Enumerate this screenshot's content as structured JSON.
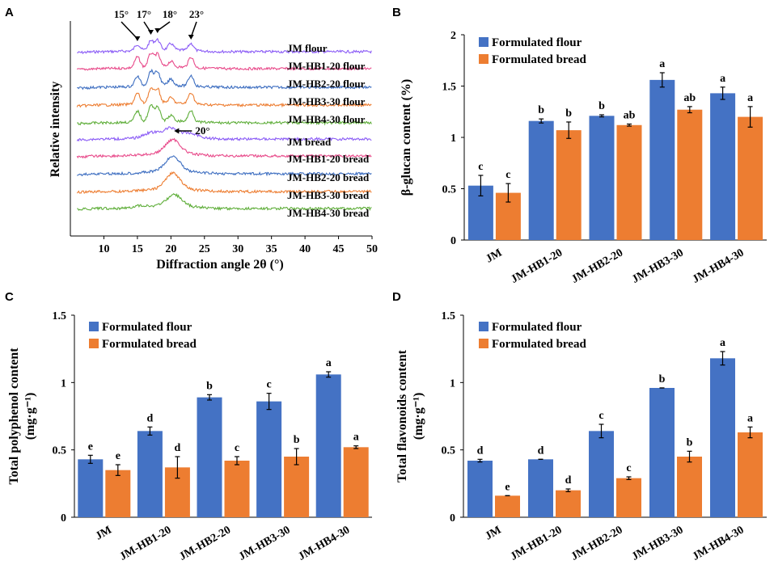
{
  "panels": {
    "A": "A",
    "B": "B",
    "C": "C",
    "D": "D"
  },
  "colors": {
    "flour": "#4472C4",
    "bread": "#ED7D31",
    "axis": "#000000"
  },
  "chart_data": [
    {
      "id": "A",
      "type": "line",
      "title": "",
      "xlabel": "Diffraction angle 2θ (°)",
      "ylabel": "Relative intensity",
      "xlim": [
        5,
        50
      ],
      "xticks": [
        10,
        15,
        20,
        25,
        30,
        35,
        40,
        45,
        50
      ],
      "peak_labels": [
        "15°",
        "17°",
        "18°",
        "23°"
      ],
      "peak_positions": [
        15,
        17,
        18,
        23
      ],
      "bread_peak_label": "20°",
      "bread_peak_position": 20,
      "series": [
        {
          "name": "JM flour",
          "color": "#8B5CF6",
          "kind": "flour",
          "peaks": [
            [
              15,
              0.35
            ],
            [
              17,
              0.5
            ],
            [
              18,
              0.55
            ],
            [
              20,
              0.35
            ],
            [
              23,
              0.4
            ]
          ]
        },
        {
          "name": "JM-HB1-20 flour",
          "color": "#E84A8A",
          "kind": "flour",
          "peaks": [
            [
              15,
              0.6
            ],
            [
              17,
              0.75
            ],
            [
              18,
              0.7
            ],
            [
              20,
              0.3
            ],
            [
              23,
              0.6
            ]
          ]
        },
        {
          "name": "JM-HB2-20 flour",
          "color": "#3C6DC0",
          "kind": "flour",
          "peaks": [
            [
              15,
              0.55
            ],
            [
              17,
              0.8
            ],
            [
              18,
              0.75
            ],
            [
              20,
              0.35
            ],
            [
              23,
              0.6
            ]
          ]
        },
        {
          "name": "JM-HB3-30 flour",
          "color": "#ED7D31",
          "kind": "flour",
          "peaks": [
            [
              15,
              0.6
            ],
            [
              17,
              0.8
            ],
            [
              18,
              0.8
            ],
            [
              20,
              0.3
            ],
            [
              23,
              0.65
            ]
          ]
        },
        {
          "name": "JM-HB4-30 flour",
          "color": "#5FAE3A",
          "kind": "flour",
          "peaks": [
            [
              15,
              0.6
            ],
            [
              17,
              0.85
            ],
            [
              18,
              0.8
            ],
            [
              20,
              0.3
            ],
            [
              23,
              0.65
            ]
          ]
        },
        {
          "name": "JM bread",
          "color": "#8B5CF6",
          "kind": "bread",
          "peaks": [
            [
              17,
              0.25
            ],
            [
              20,
              0.45
            ],
            [
              23,
              0.2
            ]
          ]
        },
        {
          "name": "JM-HB1-20 bread",
          "color": "#E84A8A",
          "kind": "bread",
          "peaks": [
            [
              20.3,
              0.75
            ]
          ]
        },
        {
          "name": "JM-HB2-20 bread",
          "color": "#3C6DC0",
          "kind": "bread",
          "peaks": [
            [
              20.3,
              0.8
            ]
          ]
        },
        {
          "name": "JM-HB3-30 bread",
          "color": "#ED7D31",
          "kind": "bread",
          "peaks": [
            [
              20.3,
              0.85
            ]
          ]
        },
        {
          "name": "JM-HB4-30 bread",
          "color": "#5FAE3A",
          "kind": "bread",
          "peaks": [
            [
              15.5,
              0.1
            ],
            [
              20.5,
              0.6
            ]
          ]
        }
      ]
    },
    {
      "id": "B",
      "type": "bar",
      "title": "",
      "xlabel": "",
      "ylabel": "β-glucan content (%)",
      "ylim": [
        0,
        2
      ],
      "yticks": [
        0,
        0.5,
        1,
        1.5,
        2
      ],
      "ytick_labels": [
        "0",
        "0.5",
        "1",
        "1.5",
        "2"
      ],
      "categories": [
        "JM",
        "JM-HB1-20",
        "JM-HB2-20",
        "JM-HB3-30",
        "JM-HB4-30"
      ],
      "series": [
        {
          "name": "Formulated flour",
          "color": "#4472C4",
          "values": [
            0.53,
            1.16,
            1.21,
            1.56,
            1.43
          ],
          "errors": [
            0.1,
            0.02,
            0.01,
            0.07,
            0.06
          ],
          "letters": [
            "c",
            "b",
            "b",
            "a",
            "a"
          ]
        },
        {
          "name": "Formulated bread",
          "color": "#ED7D31",
          "values": [
            0.46,
            1.07,
            1.12,
            1.27,
            1.2
          ],
          "errors": [
            0.09,
            0.08,
            0.01,
            0.03,
            0.1
          ],
          "letters": [
            "c",
            "b",
            "ab",
            "ab",
            "a"
          ]
        }
      ]
    },
    {
      "id": "C",
      "type": "bar",
      "title": "",
      "xlabel": "",
      "ylabel": "Total polyphenol content",
      "ylabel_unit": "(mg·g⁻¹)",
      "ylim": [
        0,
        1.5
      ],
      "yticks": [
        0,
        0.5,
        1,
        1.5
      ],
      "ytick_labels": [
        "0",
        "0.5",
        "1",
        "1.5"
      ],
      "categories": [
        "JM",
        "JM-HB1-20",
        "JM-HB2-20",
        "JM-HB3-30",
        "JM-HB4-30"
      ],
      "series": [
        {
          "name": "Formulated flour",
          "color": "#4472C4",
          "values": [
            0.43,
            0.64,
            0.89,
            0.86,
            1.06
          ],
          "errors": [
            0.03,
            0.03,
            0.02,
            0.06,
            0.02
          ],
          "letters": [
            "e",
            "d",
            "b",
            "c",
            "a"
          ]
        },
        {
          "name": "Formulated bread",
          "color": "#ED7D31",
          "values": [
            0.35,
            0.37,
            0.42,
            0.45,
            0.52
          ],
          "errors": [
            0.04,
            0.08,
            0.03,
            0.06,
            0.01
          ],
          "letters": [
            "e",
            "d",
            "c",
            "b",
            "a"
          ]
        }
      ]
    },
    {
      "id": "D",
      "type": "bar",
      "title": "",
      "xlabel": "",
      "ylabel": "Total flavonoids content",
      "ylabel_unit": "(mg·g⁻¹)",
      "ylim": [
        0,
        1.5
      ],
      "yticks": [
        0,
        0.5,
        1,
        1.5
      ],
      "ytick_labels": [
        "0",
        "0.5",
        "1",
        "1.5"
      ],
      "categories": [
        "JM",
        "JM-HB1-20",
        "JM-HB2-20",
        "JM-HB3-30",
        "JM-HB4-30"
      ],
      "series": [
        {
          "name": "Formulated flour",
          "color": "#4472C4",
          "values": [
            0.42,
            0.43,
            0.64,
            0.96,
            1.18
          ],
          "errors": [
            0.01,
            0.0,
            0.05,
            0.0,
            0.05
          ],
          "letters": [
            "d",
            "d",
            "c",
            "b",
            "a"
          ]
        },
        {
          "name": "Formulated bread",
          "color": "#ED7D31",
          "values": [
            0.16,
            0.2,
            0.29,
            0.45,
            0.63
          ],
          "errors": [
            0.0,
            0.01,
            0.01,
            0.04,
            0.04
          ],
          "letters": [
            "e",
            "d",
            "c",
            "b",
            "a"
          ]
        }
      ]
    }
  ]
}
